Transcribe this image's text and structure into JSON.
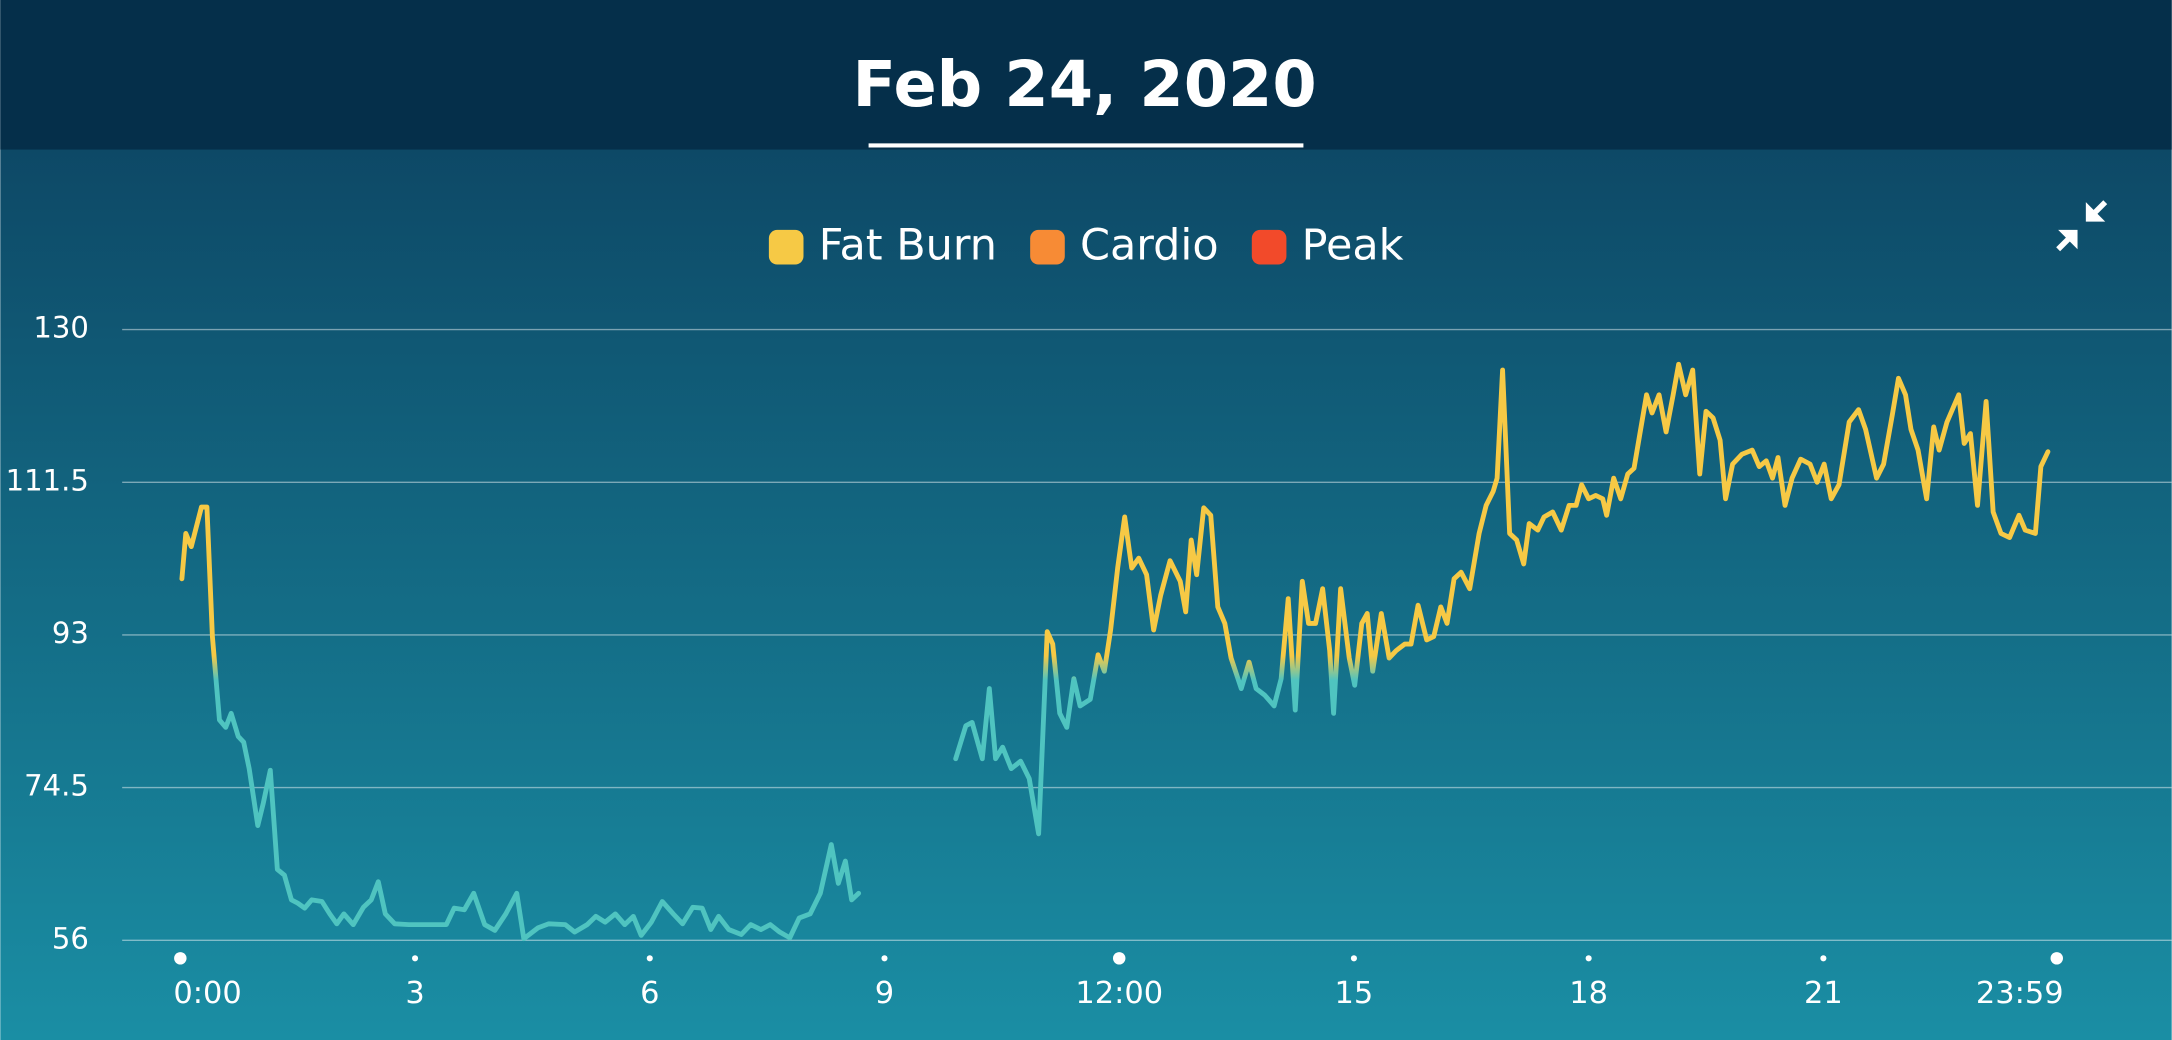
{
  "chart_data": {
    "type": "line",
    "title": "Feb 24, 2020",
    "zones": [
      {
        "name": "Fat Burn",
        "color": "#f6c945"
      },
      {
        "name": "Cardio",
        "color": "#f78b35"
      },
      {
        "name": "Peak",
        "color": "#f24a2a"
      }
    ],
    "line_color": "#4fc4c0",
    "threshold": 89,
    "xlim": [
      0,
      23.983
    ],
    "xticks": [
      {
        "value": 0,
        "label": "0:00"
      },
      3,
      6,
      9,
      {
        "value": 12,
        "label": "12:00"
      },
      15,
      18,
      21,
      {
        "value": 23.983,
        "label": "23:59"
      }
    ],
    "ylim": [
      56,
      130
    ],
    "yticks": [
      56,
      74.5,
      93,
      111.5,
      130
    ],
    "grid": true,
    "x": [
      0.02,
      0.07,
      0.14,
      0.27,
      0.34,
      0.41,
      0.5,
      0.58,
      0.65,
      0.74,
      0.81,
      0.88,
      0.99,
      1.06,
      1.15,
      1.24,
      1.33,
      1.42,
      1.5,
      1.59,
      1.68,
      1.81,
      1.91,
      2.0,
      2.09,
      2.21,
      2.34,
      2.44,
      2.53,
      2.62,
      2.74,
      2.92,
      3.19,
      3.4,
      3.5,
      3.63,
      3.75,
      3.89,
      4.02,
      4.16,
      4.3,
      4.39,
      4.57,
      4.71,
      4.92,
      5.04,
      5.2,
      5.31,
      5.43,
      5.56,
      5.68,
      5.79,
      5.89,
      6.02,
      6.16,
      6.3,
      6.42,
      6.55,
      6.67,
      6.78,
      6.88,
      7.01,
      7.17,
      7.29,
      7.42,
      7.54,
      7.66,
      7.79,
      7.91,
      8.05,
      8.18,
      8.32,
      8.41,
      8.5,
      8.58,
      8.67,
      9.4,
      9.91,
      10.04,
      10.12,
      10.25,
      10.34,
      10.42,
      10.51,
      10.62,
      10.74,
      10.85,
      10.97,
      11.08,
      11.15,
      11.24,
      11.33,
      11.42,
      11.5,
      11.63,
      11.73,
      11.81,
      11.89,
      11.98,
      12.07,
      12.16,
      12.25,
      12.35,
      12.44,
      12.53,
      12.65,
      12.78,
      12.85,
      12.92,
      12.99,
      13.08,
      13.17,
      13.26,
      13.35,
      13.43,
      13.56,
      13.66,
      13.75,
      13.86,
      13.98,
      14.07,
      14.16,
      14.25,
      14.34,
      14.42,
      14.51,
      14.6,
      14.69,
      14.74,
      14.83,
      14.94,
      15.01,
      15.1,
      15.17,
      15.24,
      15.35,
      15.45,
      15.54,
      15.65,
      15.73,
      15.82,
      15.93,
      16.02,
      16.11,
      16.19,
      16.28,
      16.37,
      16.48,
      16.6,
      16.69,
      16.78,
      16.83,
      16.9,
      16.99,
      17.08,
      17.17,
      17.24,
      17.35,
      17.43,
      17.54,
      17.65,
      17.75,
      17.84,
      17.91,
      18.0,
      18.09,
      18.18,
      18.23,
      18.32,
      18.41,
      18.5,
      18.58,
      18.65,
      18.74,
      18.81,
      18.9,
      18.99,
      19.08,
      19.15,
      19.24,
      19.33,
      19.42,
      19.5,
      19.59,
      19.68,
      19.75,
      19.84,
      19.96,
      20.09,
      20.18,
      20.27,
      20.35,
      20.42,
      20.51,
      20.6,
      20.71,
      20.83,
      20.92,
      21.01,
      21.1,
      21.2,
      21.33,
      21.45,
      21.54,
      21.68,
      21.77,
      21.88,
      21.96,
      22.05,
      22.12,
      22.21,
      22.32,
      22.41,
      22.48,
      22.58,
      22.73,
      22.8,
      22.88,
      22.97,
      23.08,
      23.17,
      23.27,
      23.38,
      23.5,
      23.58,
      23.71,
      23.78,
      23.87
    ],
    "values": [
      99.8,
      105.3,
      103.7,
      108.5,
      108.5,
      92.8,
      82.7,
      81.8,
      83.5,
      80.7,
      80,
      76.8,
      69.9,
      72.6,
      76.6,
      64.6,
      63.9,
      60.9,
      60.5,
      59.9,
      60.9,
      60.7,
      59.2,
      58,
      59.2,
      57.9,
      60,
      60.9,
      63.1,
      59.2,
      58,
      57.9,
      57.9,
      57.9,
      59.9,
      59.7,
      61.7,
      57.9,
      57.2,
      59.2,
      61.7,
      56.2,
      57.5,
      58,
      57.9,
      57,
      57.9,
      58.9,
      58.2,
      59.2,
      57.9,
      58.9,
      56.6,
      58.2,
      60.7,
      59.2,
      58,
      60,
      59.9,
      57.3,
      58.9,
      57.3,
      56.7,
      57.9,
      57.3,
      57.9,
      57,
      56.3,
      58.7,
      59.2,
      61.7,
      67.6,
      62.9,
      65.6,
      60.9,
      61.7,
      null,
      78,
      82,
      82.4,
      78,
      86.5,
      78,
      79.4,
      76.8,
      77.7,
      75.6,
      68.9,
      93.4,
      91.9,
      83.5,
      81.8,
      87.7,
      84.4,
      85.2,
      90.6,
      88.6,
      93.6,
      101.1,
      107.3,
      101.1,
      102.3,
      100.3,
      93.6,
      97.8,
      102,
      99.5,
      95.8,
      104.5,
      100.3,
      108.4,
      107.5,
      96.4,
      94.4,
      90.2,
      86.5,
      89.7,
      86.5,
      85.7,
      84.4,
      87.7,
      97.4,
      83.9,
      99.5,
      94.4,
      94.4,
      98.6,
      91.1,
      83.5,
      98.6,
      90.2,
      86.9,
      94.4,
      95.6,
      88.6,
      95.6,
      90.2,
      91.1,
      91.9,
      91.9,
      96.6,
      92.4,
      92.8,
      96.4,
      94.4,
      99.8,
      100.6,
      98.6,
      105.3,
      108.7,
      110.4,
      112,
      125.1,
      105.3,
      104.5,
      101.6,
      106.5,
      105.7,
      107.3,
      107.9,
      105.7,
      108.7,
      108.7,
      111.2,
      109.5,
      109.9,
      109.5,
      107.5,
      112,
      109.5,
      112.5,
      113.2,
      117.1,
      122.1,
      119.9,
      122.1,
      117.6,
      122.1,
      125.8,
      122.1,
      125.1,
      112.5,
      120.1,
      119.3,
      116.6,
      109.5,
      113.7,
      114.9,
      115.4,
      113.4,
      114.1,
      112,
      114.5,
      108.7,
      112,
      114.3,
      113.7,
      111.5,
      113.7,
      109.5,
      111.2,
      118.8,
      120.3,
      117.9,
      112,
      113.7,
      119.6,
      124.1,
      122.1,
      117.9,
      115.4,
      109.5,
      118.2,
      115.4,
      118.8,
      122.1,
      116.2,
      117.4,
      108.7,
      121.3,
      107.9,
      105.3,
      104.8,
      107.5,
      105.7,
      105.3,
      113.4,
      115.2
    ]
  }
}
